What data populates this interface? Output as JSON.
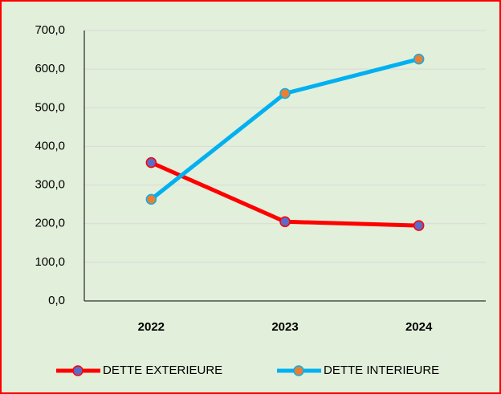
{
  "chart_data": {
    "type": "line",
    "categories": [
      "2022",
      "2023",
      "2024"
    ],
    "series": [
      {
        "name": "DETTE EXTERIEURE",
        "color": "#ff0000",
        "marker_color": "#5b6bc8",
        "values": [
          358,
          205,
          195
        ]
      },
      {
        "name": "DETTE INTERIEURE",
        "color": "#00b0f0",
        "marker_color": "#ed7d31",
        "values": [
          263,
          537,
          626
        ]
      }
    ],
    "ylim": [
      0,
      700
    ],
    "yticks": [
      {
        "value": 0,
        "label": "0,0"
      },
      {
        "value": 100,
        "label": "100,0"
      },
      {
        "value": 200,
        "label": "200,0"
      },
      {
        "value": 300,
        "label": "300,0"
      },
      {
        "value": 400,
        "label": "400,0"
      },
      {
        "value": 500,
        "label": "500,0"
      },
      {
        "value": 600,
        "label": "600,0"
      },
      {
        "value": 700,
        "label": "700,0"
      }
    ],
    "grid": true
  }
}
